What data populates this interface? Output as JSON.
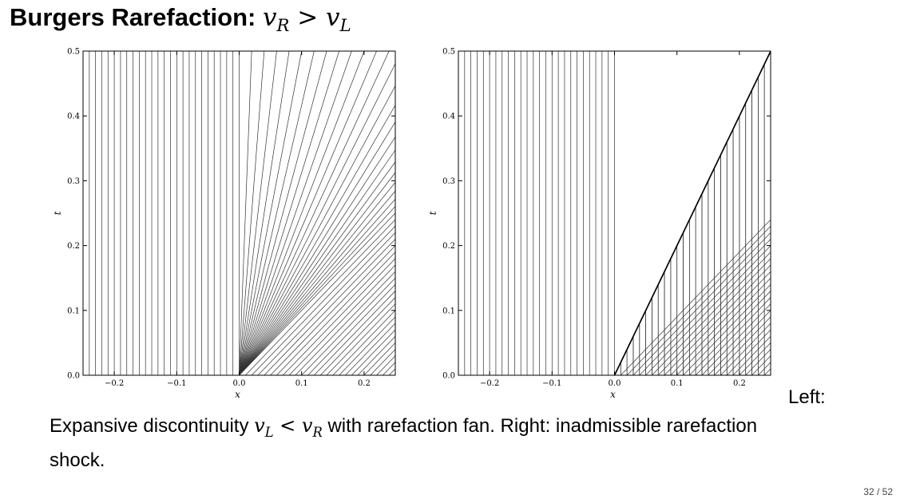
{
  "slide": {
    "title_prefix": "Burgers Rarefaction: ",
    "title_math": {
      "v1": "v",
      "s1": "R",
      "rel": " > ",
      "v2": "v",
      "s2": "L"
    },
    "caption_lead": "Left:",
    "caption_part1": "Expansive discontinuity ",
    "caption_math": {
      "v1": "v",
      "s1": "L",
      "rel": " < ",
      "v2": "v",
      "s2": "R"
    },
    "caption_part2": " with rarefaction fan. Right: inadmissible rarefaction shock.",
    "page_number": "32 / 52"
  },
  "chart_data": [
    {
      "type": "line",
      "description_id": "left",
      "xlabel": "x",
      "ylabel": "t",
      "xlim": [
        -0.25,
        0.25
      ],
      "ylim": [
        0,
        0.5
      ],
      "xticks": [
        -0.2,
        -0.1,
        0.0,
        0.1,
        0.2
      ],
      "xtick_labels": [
        "−0.2",
        "−0.1",
        "0.0",
        "0.1",
        "0.2"
      ],
      "yticks": [
        0.0,
        0.1,
        0.2,
        0.3,
        0.4,
        0.5
      ],
      "ytick_labels": [
        "0.0",
        "0.1",
        "0.2",
        "0.3",
        "0.4",
        "0.5"
      ],
      "grid": false,
      "left_state_speed": 0,
      "right_state_speed": 1,
      "characteristic_spacing": 0.01,
      "fan_speeds": [
        0.0,
        0.04,
        0.08,
        0.12,
        0.16,
        0.2,
        0.24,
        0.28,
        0.32,
        0.36,
        0.4,
        0.44,
        0.48,
        0.52,
        0.56,
        0.6,
        0.64,
        0.68,
        0.72,
        0.76,
        0.8,
        0.84,
        0.88,
        0.92,
        0.96,
        1.0
      ],
      "shock": null
    },
    {
      "type": "line",
      "description_id": "right",
      "xlabel": "x",
      "ylabel": "t",
      "xlim": [
        -0.25,
        0.25
      ],
      "ylim": [
        0,
        0.5
      ],
      "xticks": [
        -0.2,
        -0.1,
        0.0,
        0.1,
        0.2
      ],
      "xtick_labels": [
        "−0.2",
        "−0.1",
        "0.0",
        "0.1",
        "0.2"
      ],
      "yticks": [
        0.0,
        0.1,
        0.2,
        0.3,
        0.4,
        0.5
      ],
      "ytick_labels": [
        "0.0",
        "0.1",
        "0.2",
        "0.3",
        "0.4",
        "0.5"
      ],
      "grid": false,
      "left_state_speed": 0,
      "right_state_speed": 1,
      "characteristic_spacing": 0.01,
      "fan_speeds": [],
      "shock": {
        "x0": 0.0,
        "speed": 0.5
      }
    }
  ]
}
